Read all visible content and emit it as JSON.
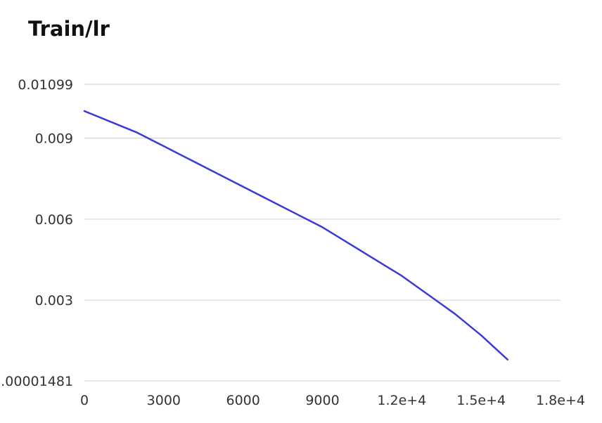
{
  "chart_data": {
    "type": "line",
    "title": "Train/lr",
    "xlabel": "",
    "ylabel": "",
    "xlim": [
      0,
      18000
    ],
    "ylim": [
      1.481e-05,
      0.01099
    ],
    "x_ticks": [
      {
        "value": 0,
        "label": "0"
      },
      {
        "value": 3000,
        "label": "3000"
      },
      {
        "value": 6000,
        "label": "6000"
      },
      {
        "value": 9000,
        "label": "9000"
      },
      {
        "value": 12000,
        "label": "1.2e+4"
      },
      {
        "value": 15000,
        "label": "1.5e+4"
      },
      {
        "value": 18000,
        "label": "1.8e+4"
      }
    ],
    "y_ticks": [
      {
        "value": 1.481e-05,
        "label": "0.00001481"
      },
      {
        "value": 0.003,
        "label": "0.003"
      },
      {
        "value": 0.006,
        "label": "0.006"
      },
      {
        "value": 0.009,
        "label": "0.009"
      },
      {
        "value": 0.01099,
        "label": "0.01099"
      }
    ],
    "grid": true,
    "legend": "none",
    "series": [
      {
        "color": "#3a3adb",
        "x": [
          0,
          1000,
          2000,
          3000,
          4000,
          5000,
          6000,
          7000,
          8000,
          9000,
          10000,
          11000,
          12000,
          13000,
          14000,
          15000,
          16000
        ],
        "y": [
          0.01,
          0.0096,
          0.0092,
          0.0087,
          0.0082,
          0.0077,
          0.0072,
          0.0067,
          0.0062,
          0.0057,
          0.0051,
          0.0045,
          0.0039,
          0.0032,
          0.0025,
          0.0017,
          0.0008
        ]
      }
    ]
  }
}
